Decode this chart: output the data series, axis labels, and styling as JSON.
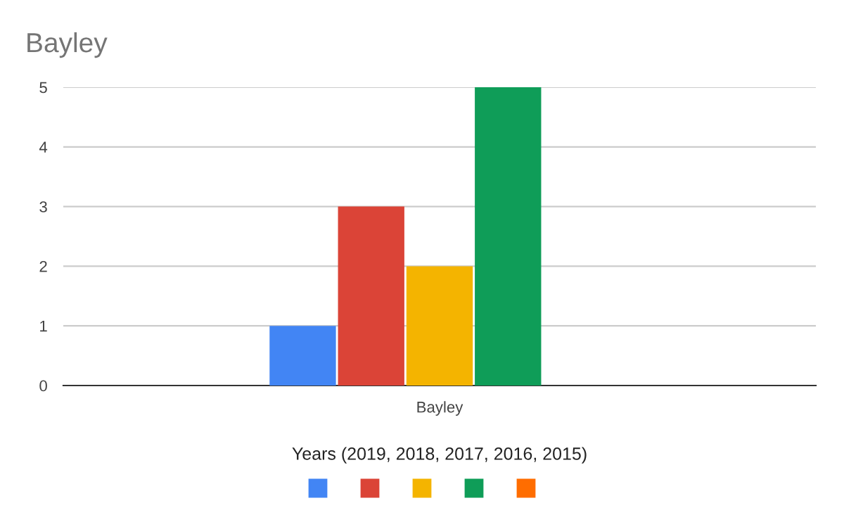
{
  "chart_data": {
    "type": "bar",
    "title": "Bayley",
    "xlabel": "Years (2019, 2018, 2017, 2016, 2015)",
    "categories": [
      null,
      null,
      null,
      null,
      null,
      "Bayley",
      null,
      null,
      null,
      null,
      null
    ],
    "values": [
      null,
      null,
      null,
      1,
      3,
      2,
      5,
      0,
      null,
      null,
      null
    ],
    "colors": [
      null,
      null,
      null,
      "#4285f4",
      "#db4437",
      "#f4b400",
      "#0f9d58",
      "#ff6d00",
      null,
      null,
      null
    ],
    "ylim": [
      0,
      5
    ],
    "yticks": [
      0,
      1,
      2,
      3,
      4,
      5
    ],
    "grid": "y"
  }
}
